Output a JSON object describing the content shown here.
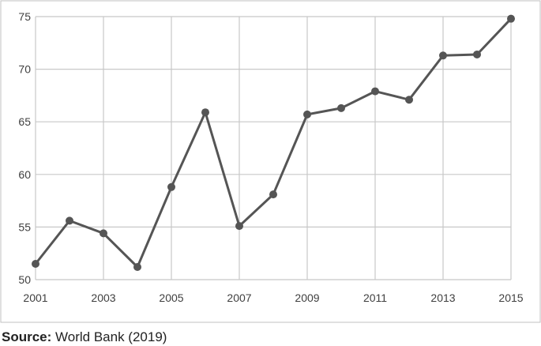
{
  "chart_data": {
    "type": "line",
    "title": "",
    "xlabel": "",
    "ylabel": "",
    "x": [
      2001,
      2002,
      2003,
      2004,
      2005,
      2006,
      2007,
      2008,
      2009,
      2010,
      2011,
      2012,
      2013,
      2014,
      2015
    ],
    "series": [
      {
        "values": [
          51.5,
          55.6,
          54.4,
          51.2,
          58.8,
          65.9,
          55.1,
          58.1,
          65.7,
          66.3,
          67.9,
          67.1,
          71.3,
          71.4,
          74.8
        ]
      }
    ],
    "xlim": [
      2001,
      2015
    ],
    "ylim": [
      50,
      75
    ],
    "x_ticks": [
      "2001",
      "2003",
      "2005",
      "2007",
      "2009",
      "2011",
      "2013",
      "2015"
    ],
    "y_ticks": [
      "50",
      "55",
      "60",
      "65",
      "70",
      "75"
    ],
    "grid": true,
    "colors": {
      "line": "#555555",
      "grid": "#c8c8c8",
      "frame": "#c0c0c0"
    }
  },
  "source": {
    "label": "Source:",
    "text": " World Bank (2019)"
  }
}
